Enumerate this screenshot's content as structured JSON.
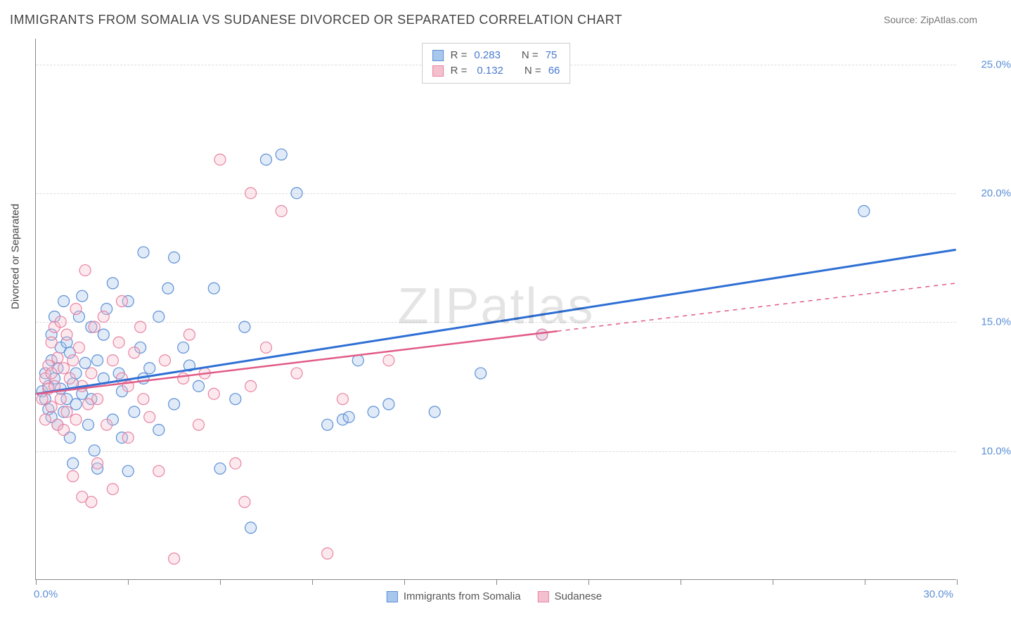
{
  "title": "IMMIGRANTS FROM SOMALIA VS SUDANESE DIVORCED OR SEPARATED CORRELATION CHART",
  "source": "Source: ZipAtlas.com",
  "watermark": "ZIPatlas",
  "chart": {
    "type": "scatter",
    "y_axis_title": "Divorced or Separated",
    "xlim": [
      0,
      30
    ],
    "ylim": [
      5,
      26
    ],
    "x_ticks": [
      0,
      3,
      6,
      9,
      12,
      15,
      18,
      21,
      24,
      27,
      30
    ],
    "y_gridlines": [
      10,
      15,
      20,
      25
    ],
    "y_labels": [
      "10.0%",
      "15.0%",
      "20.0%",
      "25.0%"
    ],
    "x_min_label": "0.0%",
    "x_max_label": "30.0%",
    "background_color": "#ffffff",
    "grid_color": "#dddddd",
    "axis_color": "#888888",
    "label_color": "#5b8fd6",
    "marker_radius": 8,
    "marker_stroke_width": 1.2,
    "series": [
      {
        "name": "Immigrants from Somalia",
        "fill": "#a8c7ec",
        "stroke": "#5b8fd6",
        "r": 0.283,
        "n": 75,
        "regression": {
          "x1": 0,
          "y1": 12.2,
          "x2": 30,
          "y2": 17.8,
          "stroke": "#2e6fd4",
          "width": 3,
          "dash_from_x": null
        },
        "points": [
          [
            0.2,
            12.3
          ],
          [
            0.3,
            13.0
          ],
          [
            0.3,
            12.0
          ],
          [
            0.4,
            11.6
          ],
          [
            0.4,
            12.5
          ],
          [
            0.5,
            13.5
          ],
          [
            0.5,
            14.5
          ],
          [
            0.5,
            11.3
          ],
          [
            0.6,
            12.8
          ],
          [
            0.6,
            15.2
          ],
          [
            0.7,
            11.0
          ],
          [
            0.7,
            13.2
          ],
          [
            0.8,
            14.0
          ],
          [
            0.8,
            12.4
          ],
          [
            0.9,
            11.5
          ],
          [
            0.9,
            15.8
          ],
          [
            1.0,
            12.0
          ],
          [
            1.0,
            14.2
          ],
          [
            1.1,
            10.5
          ],
          [
            1.1,
            13.8
          ],
          [
            1.2,
            12.6
          ],
          [
            1.2,
            9.5
          ],
          [
            1.3,
            13.0
          ],
          [
            1.3,
            11.8
          ],
          [
            1.4,
            15.2
          ],
          [
            1.5,
            12.2
          ],
          [
            1.5,
            16.0
          ],
          [
            1.6,
            13.4
          ],
          [
            1.7,
            11.0
          ],
          [
            1.8,
            14.8
          ],
          [
            1.8,
            12.0
          ],
          [
            1.9,
            10.0
          ],
          [
            2.0,
            9.3
          ],
          [
            2.0,
            13.5
          ],
          [
            2.2,
            14.5
          ],
          [
            2.2,
            12.8
          ],
          [
            2.3,
            15.5
          ],
          [
            2.5,
            16.5
          ],
          [
            2.5,
            11.2
          ],
          [
            2.7,
            13.0
          ],
          [
            2.8,
            10.5
          ],
          [
            2.8,
            12.3
          ],
          [
            3.0,
            15.8
          ],
          [
            3.0,
            9.2
          ],
          [
            3.2,
            11.5
          ],
          [
            3.4,
            14.0
          ],
          [
            3.5,
            17.7
          ],
          [
            3.5,
            12.8
          ],
          [
            3.7,
            13.2
          ],
          [
            4.0,
            10.8
          ],
          [
            4.0,
            15.2
          ],
          [
            4.3,
            16.3
          ],
          [
            4.5,
            11.8
          ],
          [
            4.8,
            14.0
          ],
          [
            5.0,
            13.3
          ],
          [
            5.3,
            12.5
          ],
          [
            5.8,
            16.3
          ],
          [
            6.0,
            9.3
          ],
          [
            6.5,
            12.0
          ],
          [
            6.8,
            14.8
          ],
          [
            7.0,
            7.0
          ],
          [
            7.5,
            21.3
          ],
          [
            8.0,
            21.5
          ],
          [
            8.5,
            20.0
          ],
          [
            9.5,
            11.0
          ],
          [
            10.0,
            11.2
          ],
          [
            10.2,
            11.3
          ],
          [
            10.5,
            13.5
          ],
          [
            11.0,
            11.5
          ],
          [
            11.5,
            11.8
          ],
          [
            13.0,
            11.5
          ],
          [
            14.5,
            13.0
          ],
          [
            16.5,
            14.5
          ],
          [
            27.0,
            19.3
          ],
          [
            4.5,
            17.5
          ]
        ]
      },
      {
        "name": "Sudanese",
        "fill": "#f5c0cd",
        "stroke": "#e983a3",
        "r": 0.132,
        "n": 66,
        "regression": {
          "x1": 0,
          "y1": 12.2,
          "x2": 30,
          "y2": 16.5,
          "stroke": "#e15b86",
          "width": 2.5,
          "dash_from_x": 17
        },
        "points": [
          [
            0.2,
            12.0
          ],
          [
            0.3,
            12.8
          ],
          [
            0.3,
            11.2
          ],
          [
            0.4,
            13.3
          ],
          [
            0.4,
            12.4
          ],
          [
            0.5,
            14.2
          ],
          [
            0.5,
            11.7
          ],
          [
            0.5,
            13.0
          ],
          [
            0.6,
            12.5
          ],
          [
            0.6,
            14.8
          ],
          [
            0.7,
            11.0
          ],
          [
            0.7,
            13.6
          ],
          [
            0.8,
            12.0
          ],
          [
            0.8,
            15.0
          ],
          [
            0.9,
            10.8
          ],
          [
            0.9,
            13.2
          ],
          [
            1.0,
            14.5
          ],
          [
            1.0,
            11.5
          ],
          [
            1.1,
            12.8
          ],
          [
            1.2,
            9.0
          ],
          [
            1.2,
            13.5
          ],
          [
            1.3,
            15.5
          ],
          [
            1.3,
            11.2
          ],
          [
            1.4,
            14.0
          ],
          [
            1.5,
            8.2
          ],
          [
            1.5,
            12.5
          ],
          [
            1.6,
            17.0
          ],
          [
            1.7,
            11.8
          ],
          [
            1.8,
            13.0
          ],
          [
            1.8,
            8.0
          ],
          [
            1.9,
            14.8
          ],
          [
            2.0,
            12.0
          ],
          [
            2.0,
            9.5
          ],
          [
            2.2,
            15.2
          ],
          [
            2.3,
            11.0
          ],
          [
            2.5,
            13.5
          ],
          [
            2.5,
            8.5
          ],
          [
            2.7,
            14.2
          ],
          [
            2.8,
            15.8
          ],
          [
            3.0,
            12.5
          ],
          [
            3.0,
            10.5
          ],
          [
            3.2,
            13.8
          ],
          [
            3.4,
            14.8
          ],
          [
            3.5,
            12.0
          ],
          [
            3.7,
            11.3
          ],
          [
            4.0,
            9.2
          ],
          [
            4.2,
            13.5
          ],
          [
            4.5,
            5.8
          ],
          [
            4.8,
            12.8
          ],
          [
            5.0,
            14.5
          ],
          [
            5.3,
            11.0
          ],
          [
            5.5,
            13.0
          ],
          [
            5.8,
            12.2
          ],
          [
            6.0,
            21.3
          ],
          [
            6.5,
            9.5
          ],
          [
            6.8,
            8.0
          ],
          [
            7.0,
            12.5
          ],
          [
            7.0,
            20.0
          ],
          [
            7.5,
            14.0
          ],
          [
            8.0,
            19.3
          ],
          [
            8.5,
            13.0
          ],
          [
            9.5,
            6.0
          ],
          [
            10.0,
            12.0
          ],
          [
            11.5,
            13.5
          ],
          [
            16.5,
            14.5
          ],
          [
            2.8,
            12.8
          ]
        ]
      }
    ]
  }
}
